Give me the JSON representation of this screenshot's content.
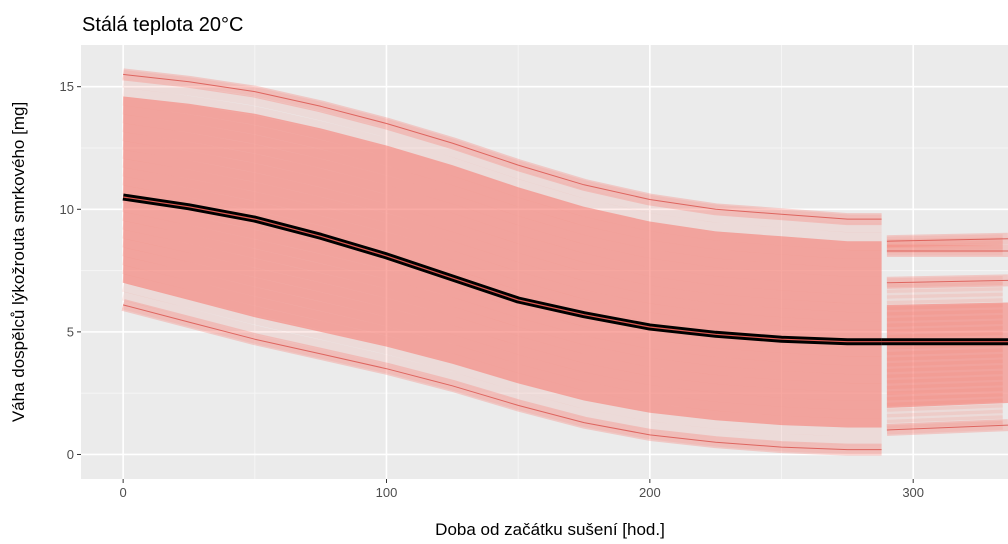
{
  "chart_data": {
    "type": "line",
    "title": "Stálá teplota 20°C",
    "xlabel": "Doba od začátku sušení [hod.]",
    "ylabel": "Váha dospělců lýkožrouta smrkového [mg]",
    "xlim": [
      -16,
      336
    ],
    "ylim": [
      -1.0,
      16.7
    ],
    "x_ticks": [
      0,
      100,
      200,
      300
    ],
    "y_ticks": [
      0,
      5,
      10,
      15
    ],
    "grid": true,
    "legend": "none",
    "colors": {
      "panel": "#ebebeb",
      "grid_major": "#ffffff",
      "grid_minor": "#f5f5f5",
      "band": "#f8766d",
      "mean_line": "#000000"
    },
    "segment_break_x": 288,
    "series": [
      {
        "role": "upper",
        "x": [
          0,
          25,
          50,
          75,
          100,
          125,
          150,
          175,
          200,
          225,
          250,
          275,
          288
        ],
        "y": [
          15.5,
          15.2,
          14.8,
          14.2,
          13.5,
          12.7,
          11.8,
          11.0,
          10.4,
          10.0,
          9.8,
          9.6,
          9.6
        ]
      },
      {
        "role": "upper",
        "x": [
          290,
          336
        ],
        "y": [
          8.7,
          8.8
        ]
      },
      {
        "role": "mean",
        "x": [
          0,
          25,
          50,
          75,
          100,
          125,
          150,
          175,
          200,
          225,
          250,
          275,
          288
        ],
        "y": [
          10.5,
          10.1,
          9.6,
          8.9,
          8.1,
          7.2,
          6.3,
          5.7,
          5.2,
          4.9,
          4.7,
          4.6,
          4.6
        ]
      },
      {
        "role": "mean",
        "x": [
          288,
          336
        ],
        "y": [
          4.6,
          4.6
        ]
      },
      {
        "role": "lower",
        "x": [
          0,
          25,
          50,
          75,
          100,
          125,
          150,
          175,
          200,
          225,
          250,
          275,
          288
        ],
        "y": [
          6.1,
          5.4,
          4.7,
          4.1,
          3.5,
          2.8,
          2.0,
          1.3,
          0.8,
          0.5,
          0.3,
          0.2,
          0.2
        ]
      },
      {
        "role": "lower",
        "x": [
          290,
          336
        ],
        "y": [
          1.0,
          1.2
        ]
      }
    ]
  }
}
